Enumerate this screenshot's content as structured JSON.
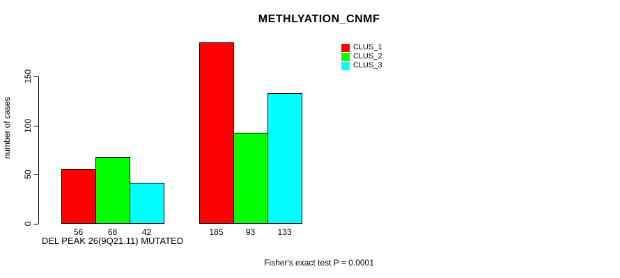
{
  "chart_data": {
    "type": "bar",
    "title": "METHLYATION_CNMF",
    "xlabel": "",
    "ylabel": "number of cases",
    "categories": [
      "DEL PEAK 26(9Q21.11) MUTATED",
      ""
    ],
    "series": [
      {
        "name": "CLUS_1",
        "color": "#ff0000",
        "values": [
          56,
          185
        ]
      },
      {
        "name": "CLUS_2",
        "color": "#00ff00",
        "values": [
          68,
          93
        ]
      },
      {
        "name": "CLUS_3",
        "color": "#00ffff",
        "values": [
          42,
          133
        ]
      }
    ],
    "y_ticks": [
      0,
      50,
      100,
      150
    ],
    "ylim": [
      0,
      196
    ],
    "grid": false,
    "bar_border_color": "#000000",
    "axis_color": "#000000",
    "background_color": "#ffffff",
    "value_labels_position": "below-axis",
    "legend": {
      "position": "inside-top-right",
      "entries": [
        "CLUS_1",
        "CLUS_2",
        "CLUS_3"
      ]
    },
    "footnote": "Fisher's exact test P = 0.0001"
  }
}
